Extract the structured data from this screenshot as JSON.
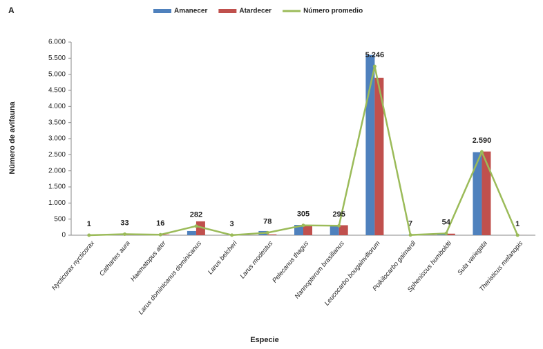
{
  "chart_data": {
    "type": "bar",
    "panel_label": "A",
    "x_label": "Especie",
    "y_label": "Número de avifauna",
    "categories": [
      "Nycticorax nycticorax",
      "Cathartes aura",
      "Haematopus ater",
      "Larus dominicanus dominicanus",
      "Larus belcheri",
      "Larus modestus",
      "Pelecanus thagus",
      "Nannopterum brasilianus",
      "Leucocarbo bougainvillorum",
      "Poikilocarbo gaimardi",
      "Spheniscus humboldti",
      "Sula variegata",
      "Theristicus melanopis"
    ],
    "series": [
      {
        "name": "Amanecer",
        "type": "bar",
        "color": "#4f81bd",
        "values": [
          1,
          30,
          15,
          130,
          3,
          130,
          320,
          280,
          5600,
          7,
          60,
          2580,
          1
        ]
      },
      {
        "name": "Atardecer",
        "type": "bar",
        "color": "#c0504d",
        "values": [
          1,
          36,
          17,
          430,
          3,
          25,
          290,
          310,
          4890,
          7,
          48,
          2600,
          1
        ]
      },
      {
        "name": "Número promedio",
        "type": "line",
        "color": "#9bbb59",
        "values": [
          1,
          33,
          16,
          282,
          3,
          78,
          305,
          295,
          5246,
          7,
          54,
          2590,
          1
        ],
        "value_labels": [
          "1",
          "33",
          "16",
          "282",
          "3",
          "78",
          "305",
          "295",
          "5.246",
          "7",
          "54",
          "2.590",
          "1"
        ]
      }
    ],
    "ylim": [
      0,
      6000
    ],
    "yticks": [
      0,
      500,
      {
        "value": 1000,
        "label": "1.000"
      },
      {
        "value": 1500,
        "label": "1.500"
      },
      {
        "value": 2000,
        "label": "2.000"
      },
      {
        "value": 2500,
        "label": "2.500"
      },
      {
        "value": 3000,
        "label": "3.000"
      },
      {
        "value": 3500,
        "label": "3.500"
      },
      {
        "value": 4000,
        "label": "4.000"
      },
      {
        "value": 4500,
        "label": "4.500"
      },
      {
        "value": 5000,
        "label": "5.000"
      },
      {
        "value": 5500,
        "label": "5.500"
      },
      {
        "value": 6000,
        "label": "6.000"
      }
    ]
  }
}
